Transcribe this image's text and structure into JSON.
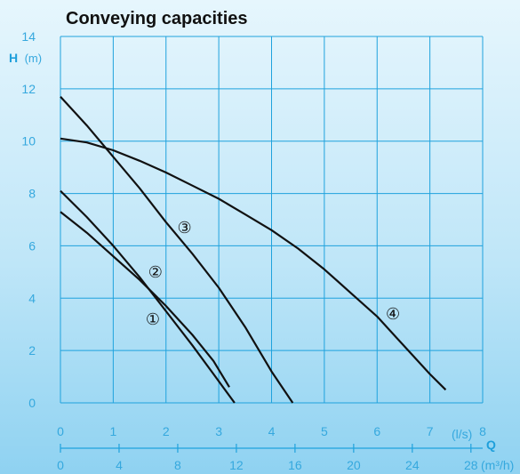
{
  "chart_data": {
    "type": "line",
    "title": "Conveying capacities",
    "ylabel_symbol": "H",
    "ylabel_unit": "(m)",
    "xlabel_symbol": "Q",
    "x_unit_ls": "(l/s)",
    "x_unit_m3h": "(m³/h)",
    "ylim": [
      0,
      14
    ],
    "xlim_ls": [
      0,
      8
    ],
    "xlim_m3h": [
      0,
      28.8
    ],
    "y_ticks": [
      "0",
      "2",
      "4",
      "6",
      "8",
      "10",
      "12",
      "14"
    ],
    "x_ticks_ls": [
      "0",
      "1",
      "2",
      "3",
      "4",
      "5",
      "6",
      "7",
      "8"
    ],
    "x_ticks_m3h": [
      "0",
      "4",
      "8",
      "12",
      "16",
      "20",
      "24",
      "28"
    ],
    "grid": true,
    "colors": {
      "grid": "#1fa2dd",
      "curve": "#111111",
      "axis_text": "#35a8de"
    },
    "series": [
      {
        "name": "①",
        "x": [
          0,
          0.5,
          1.0,
          1.5,
          2.0,
          2.5,
          2.9,
          3.2
        ],
        "y": [
          7.3,
          6.5,
          5.6,
          4.7,
          3.7,
          2.6,
          1.6,
          0.6
        ]
      },
      {
        "name": "②",
        "x": [
          0,
          0.5,
          1.0,
          1.5,
          2.0,
          2.5,
          2.9,
          3.3
        ],
        "y": [
          8.1,
          7.1,
          6.0,
          4.8,
          3.5,
          2.2,
          1.1,
          0.0
        ]
      },
      {
        "name": "③",
        "x": [
          0,
          0.5,
          1.0,
          1.5,
          2.0,
          2.5,
          3.0,
          3.5,
          4.0,
          4.4
        ],
        "y": [
          11.7,
          10.6,
          9.4,
          8.2,
          6.9,
          5.7,
          4.4,
          2.9,
          1.2,
          0.0
        ]
      },
      {
        "name": "④",
        "x": [
          0,
          0.5,
          1.0,
          1.5,
          2.0,
          2.5,
          3.0,
          3.5,
          4.0,
          4.5,
          5.0,
          5.5,
          6.0,
          6.5,
          7.0,
          7.3
        ],
        "y": [
          10.1,
          9.95,
          9.65,
          9.25,
          8.8,
          8.3,
          7.8,
          7.2,
          6.6,
          5.9,
          5.1,
          4.2,
          3.3,
          2.2,
          1.1,
          0.5
        ]
      }
    ],
    "curve_labels": [
      {
        "text": "①",
        "x": 1.75,
        "y": 3.2
      },
      {
        "text": "②",
        "x": 1.8,
        "y": 5.0
      },
      {
        "text": "③",
        "x": 2.35,
        "y": 6.7
      },
      {
        "text": "④",
        "x": 6.3,
        "y": 3.4
      }
    ]
  }
}
